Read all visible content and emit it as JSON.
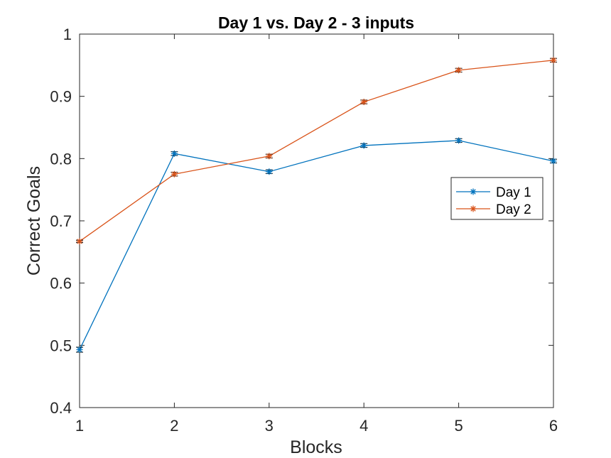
{
  "chart_data": {
    "type": "line",
    "title": "Day 1 vs. Day 2 - 3 inputs",
    "xlabel": "Blocks",
    "ylabel": "Correct Goals",
    "x": [
      1,
      2,
      3,
      4,
      5,
      6
    ],
    "xlim": [
      1,
      6
    ],
    "ylim": [
      0.4,
      1
    ],
    "xticks": [
      "1",
      "2",
      "3",
      "4",
      "5",
      "6"
    ],
    "yticks": [
      "0.4",
      "0.5",
      "0.6",
      "0.7",
      "0.8",
      "0.9",
      "1"
    ],
    "grid": false,
    "legend_position": "right",
    "series": [
      {
        "name": "Day 1",
        "color": "#0072BD",
        "marker": "asterisk",
        "values": [
          0.493,
          0.808,
          0.779,
          0.821,
          0.829,
          0.796
        ],
        "error": [
          0.004,
          0.003,
          0.003,
          0.003,
          0.003,
          0.003
        ]
      },
      {
        "name": "Day 2",
        "color": "#D95319",
        "marker": "asterisk",
        "values": [
          0.667,
          0.775,
          0.804,
          0.891,
          0.942,
          0.958
        ],
        "error": [
          0.002,
          0.003,
          0.003,
          0.003,
          0.003,
          0.003
        ]
      }
    ]
  }
}
